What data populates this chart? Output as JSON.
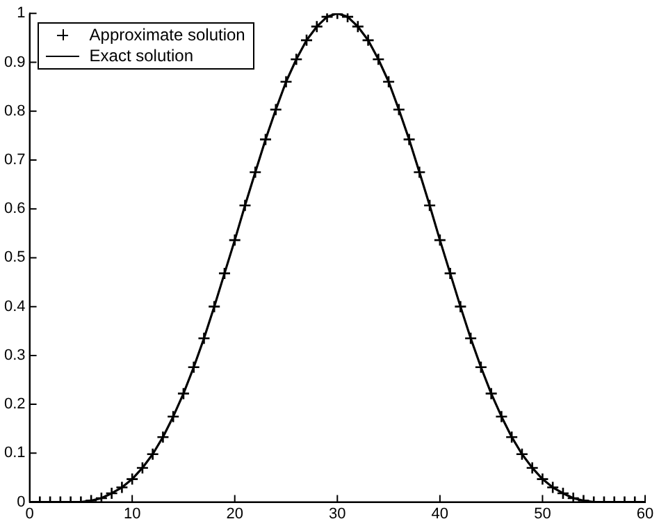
{
  "chart_data": {
    "type": "line",
    "xlim": [
      0,
      60
    ],
    "ylim": [
      0,
      1
    ],
    "xticks": [
      0,
      10,
      20,
      30,
      40,
      50,
      60
    ],
    "yticks": [
      0,
      0.1,
      0.2,
      0.3,
      0.4,
      0.5,
      0.6,
      0.7,
      0.8,
      0.9,
      1
    ],
    "grid": false,
    "legend": "top left",
    "series": [
      {
        "name": "Approximate solution",
        "type": "scatter",
        "marker": "cross",
        "color": "#000000",
        "x": [
          1,
          2,
          3,
          4,
          5,
          6,
          7,
          8,
          9,
          10,
          11,
          12,
          13,
          14,
          15,
          16,
          17,
          18,
          19,
          20,
          21,
          22,
          23,
          24,
          25,
          26,
          27,
          28,
          29,
          30,
          31,
          32,
          33,
          34,
          35,
          36,
          37,
          38,
          39,
          40,
          41,
          42,
          43,
          44,
          45,
          46,
          47,
          48,
          49,
          50,
          51,
          52,
          53,
          54,
          55,
          56,
          57,
          58,
          59
        ],
        "values": [
          0,
          0,
          0,
          0,
          0,
          0.003,
          0.008,
          0.018,
          0.03,
          0.047,
          0.07,
          0.098,
          0.133,
          0.175,
          0.222,
          0.276,
          0.335,
          0.4,
          0.468,
          0.536,
          0.607,
          0.675,
          0.742,
          0.803,
          0.86,
          0.906,
          0.945,
          0.973,
          0.993,
          1,
          0.993,
          0.973,
          0.945,
          0.906,
          0.86,
          0.803,
          0.742,
          0.675,
          0.607,
          0.536,
          0.468,
          0.4,
          0.335,
          0.276,
          0.222,
          0.175,
          0.133,
          0.098,
          0.07,
          0.047,
          0.03,
          0.018,
          0.008,
          0.003,
          0,
          0,
          0,
          0,
          0
        ]
      },
      {
        "name": "Exact solution",
        "type": "line",
        "marker": "none",
        "line_style": "solid",
        "color": "#000000",
        "x": [
          0,
          1,
          2,
          3,
          4,
          5,
          6,
          7,
          8,
          9,
          10,
          11,
          12,
          13,
          14,
          15,
          16,
          17,
          18,
          19,
          20,
          21,
          22,
          23,
          24,
          25,
          26,
          27,
          28,
          29,
          30,
          31,
          32,
          33,
          34,
          35,
          36,
          37,
          38,
          39,
          40,
          41,
          42,
          43,
          44,
          45,
          46,
          47,
          48,
          49,
          50,
          51,
          52,
          53,
          54,
          55,
          56,
          57,
          58,
          59,
          60
        ],
        "values": [
          0,
          0,
          0,
          0,
          0,
          0,
          0.003,
          0.008,
          0.018,
          0.03,
          0.047,
          0.07,
          0.098,
          0.133,
          0.175,
          0.222,
          0.276,
          0.335,
          0.4,
          0.468,
          0.536,
          0.607,
          0.675,
          0.742,
          0.803,
          0.86,
          0.906,
          0.945,
          0.973,
          0.993,
          1,
          0.993,
          0.973,
          0.945,
          0.906,
          0.86,
          0.803,
          0.742,
          0.675,
          0.607,
          0.536,
          0.468,
          0.4,
          0.335,
          0.276,
          0.222,
          0.175,
          0.133,
          0.098,
          0.07,
          0.047,
          0.03,
          0.018,
          0.008,
          0.003,
          0,
          0,
          0,
          0,
          0,
          0
        ]
      }
    ]
  }
}
